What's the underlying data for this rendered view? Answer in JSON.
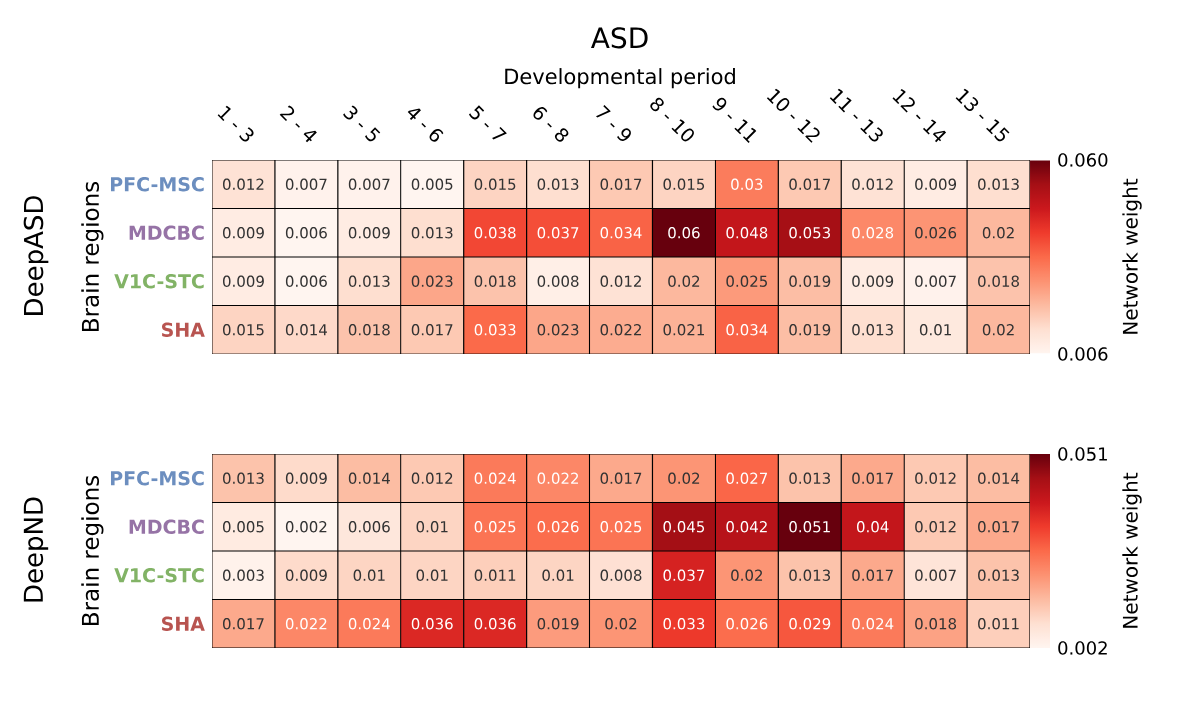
{
  "chart_data": [
    {
      "type": "heatmap",
      "title": "ASD",
      "xlabel": "Developmental period",
      "ylabel": "Brain regions",
      "annotations": [
        "DeepASD"
      ],
      "categories": [
        "1 - 3",
        "2 - 4",
        "3 - 5",
        "4 - 6",
        "5 - 7",
        "6 - 8",
        "7 - 9",
        "8 - 10",
        "9 - 11",
        "10 - 12",
        "11 - 13",
        "12 - 14",
        "13 - 15"
      ],
      "y_categories": [
        "PFC-MSC",
        "MDCBC",
        "V1C-STC",
        "SHA"
      ],
      "cells": [
        [
          0.012,
          0.007,
          0.007,
          0.005,
          0.015,
          0.013,
          0.017,
          0.015,
          0.03,
          0.017,
          0.012,
          0.009,
          0.013
        ],
        [
          0.009,
          0.006,
          0.009,
          0.013,
          0.038,
          0.037,
          0.034,
          0.06,
          0.048,
          0.053,
          0.028,
          0.026,
          0.02
        ],
        [
          0.009,
          0.006,
          0.013,
          0.023,
          0.018,
          0.008,
          0.012,
          0.02,
          0.025,
          0.019,
          0.009,
          0.007,
          0.018
        ],
        [
          0.015,
          0.014,
          0.018,
          0.017,
          0.033,
          0.023,
          0.022,
          0.021,
          0.034,
          0.019,
          0.013,
          0.01,
          0.02
        ]
      ],
      "clim": [
        0.006,
        0.06
      ],
      "cticks": [
        0.006,
        {
          "value": 0.06,
          "label": "0.060"
        }
      ],
      "clabel": "Network weight",
      "data_labels": true
    },
    {
      "type": "heatmap",
      "ylabel": "Brain regions",
      "annotations": [
        "DeepND"
      ],
      "tick_labels": "y",
      "categories": [
        null,
        null,
        null,
        null,
        null,
        null,
        null,
        null,
        null,
        null,
        null,
        null,
        null
      ],
      "y_categories": [
        "PFC-MSC",
        "MDCBC",
        "V1C-STC",
        "SHA"
      ],
      "cells": [
        [
          0.013,
          0.009,
          0.014,
          0.012,
          0.024,
          0.022,
          0.017,
          0.02,
          0.027,
          0.013,
          0.017,
          0.012,
          0.014
        ],
        [
          0.005,
          0.002,
          0.006,
          0.01,
          0.025,
          0.026,
          0.025,
          0.045,
          0.042,
          0.051,
          0.04,
          0.012,
          0.017
        ],
        [
          0.003,
          0.009,
          0.01,
          0.01,
          0.011,
          0.01,
          0.008,
          0.037,
          0.02,
          0.013,
          0.017,
          0.007,
          0.013
        ],
        [
          0.017,
          0.022,
          0.024,
          0.036,
          0.036,
          0.019,
          0.02,
          0.033,
          0.026,
          0.029,
          0.024,
          0.018,
          0.011
        ]
      ],
      "clim": [
        0.002,
        0.051
      ],
      "cticks": [
        0.051,
        0.002
      ],
      "clabel": "Network weight",
      "data_labels": true
    }
  ]
}
